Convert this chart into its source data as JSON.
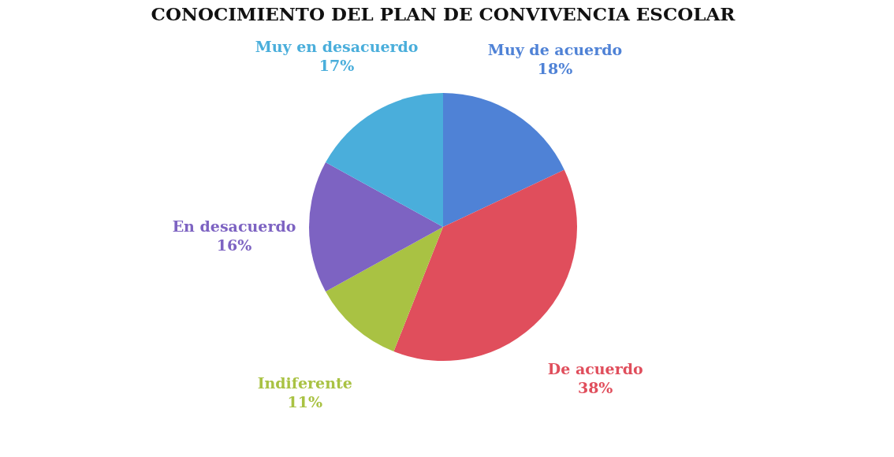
{
  "chart_data": {
    "type": "pie",
    "title": "CONOCIMIENTO DEL PLAN DE CONVIVENCIA ESCOLAR",
    "categories": [
      "Muy de acuerdo",
      "De acuerdo",
      "Indiferente",
      "En desacuerdo",
      "Muy en desacuerdo"
    ],
    "values": [
      18,
      38,
      11,
      16,
      17
    ],
    "value_labels": [
      "18%",
      "38%",
      "11%",
      "16%",
      "17%"
    ],
    "colors": [
      "#4f82d6",
      "#e04e5c",
      "#a9c243",
      "#7d63c2",
      "#4aaedb"
    ]
  }
}
